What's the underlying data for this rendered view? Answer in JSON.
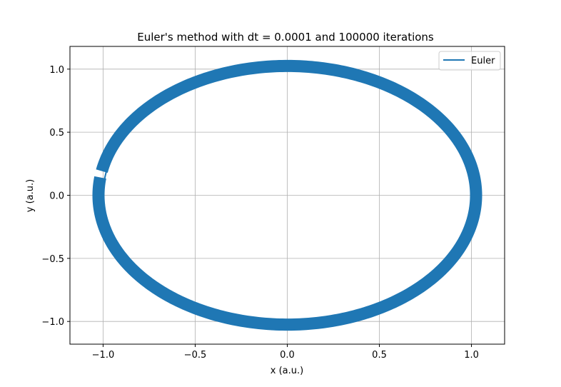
{
  "chart_data": {
    "type": "line",
    "title": "Euler's method with dt = 0.0001 and 100000 iterations",
    "xlabel": "x (a.u.)",
    "ylabel": "y (a.u.)",
    "xlim": [
      -1.18,
      1.18
    ],
    "ylim": [
      -1.18,
      1.18
    ],
    "xticks": [
      -1.0,
      -0.5,
      0.0,
      0.5,
      1.0
    ],
    "xtick_labels": [
      "−1.0",
      "−0.5",
      "0.0",
      "0.5",
      "1.0"
    ],
    "yticks": [
      -1.0,
      -0.5,
      0.0,
      0.5,
      1.0
    ],
    "ytick_labels": [
      "−1.0",
      "−0.5",
      "0.0",
      "0.5",
      "1.0"
    ],
    "grid": true,
    "legend_position": "top-right",
    "series": [
      {
        "name": "Euler",
        "color": "#1f77b4",
        "dt": 0.0001,
        "iterations": 100000,
        "x0": 1.0,
        "y0": 0.0,
        "x_end": -1.05,
        "y_end": 0.2
      }
    ]
  }
}
